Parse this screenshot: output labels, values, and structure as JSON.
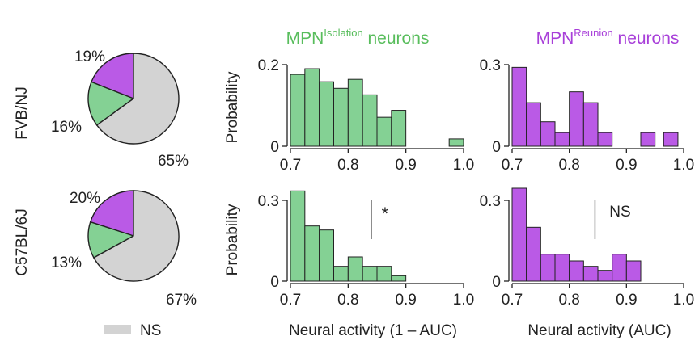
{
  "colors": {
    "isolation": "#84d194",
    "reunion": "#ba5ae6",
    "ns": "#d3d3d3",
    "isolation_title": "#58bd5c",
    "reunion_title": "#a83fd9",
    "axis": "#222222"
  },
  "titles": {
    "isolation_prefix": "MPN",
    "isolation_sup": "Isolation",
    "isolation_suffix": " neurons",
    "reunion_prefix": "MPN",
    "reunion_sup": "Reunion",
    "reunion_suffix": " neurons"
  },
  "legend": {
    "ns_label": "NS"
  },
  "chart_data": [
    {
      "type": "pie",
      "row_label": "FVB/NJ",
      "slices": [
        {
          "label": "19%",
          "value": 19,
          "color_key": "reunion"
        },
        {
          "label": "16%",
          "value": 16,
          "color_key": "isolation"
        },
        {
          "label": "65%",
          "value": 65,
          "color_key": "ns"
        }
      ]
    },
    {
      "type": "pie",
      "row_label": "C57BL/6J",
      "slices": [
        {
          "label": "20%",
          "value": 20,
          "color_key": "reunion"
        },
        {
          "label": "13%",
          "value": 13,
          "color_key": "isolation"
        },
        {
          "label": "67%",
          "value": 67,
          "color_key": "ns"
        }
      ]
    },
    {
      "type": "bar",
      "group": "isolation",
      "ylabel": "Probability",
      "xlabel": "",
      "xlim": [
        0.7,
        1.0
      ],
      "ylim": [
        0,
        0.2
      ],
      "yticks": [
        "0",
        "0.2"
      ],
      "xticks": [
        "0.7",
        "0.8",
        "0.9",
        "1.0"
      ],
      "bin_width": 0.025,
      "bin_starts": [
        0.7,
        0.725,
        0.75,
        0.775,
        0.8,
        0.825,
        0.85,
        0.875,
        0.9,
        0.925,
        0.95,
        0.975
      ],
      "values": [
        0.176,
        0.19,
        0.158,
        0.142,
        0.164,
        0.126,
        0.071,
        0.088,
        0,
        0,
        0,
        0.018
      ]
    },
    {
      "type": "bar",
      "group": "reunion",
      "ylabel": "",
      "xlabel": "",
      "xlim": [
        0.7,
        1.0
      ],
      "ylim": [
        0,
        0.3
      ],
      "yticks": [
        "0",
        "0.3"
      ],
      "xticks": [
        "0.7",
        "0.8",
        "0.9",
        "1.0"
      ],
      "bin_width": 0.025,
      "bin_starts": [
        0.7,
        0.725,
        0.75,
        0.775,
        0.8,
        0.825,
        0.85,
        0.875,
        0.9,
        0.925,
        0.95,
        0.975
      ],
      "values": [
        0.29,
        0.16,
        0.09,
        0.05,
        0.2,
        0.16,
        0.05,
        0,
        0,
        0.05,
        0,
        0
      ],
      "extra_bars": [
        {
          "start": 0.965,
          "value": 0.05
        }
      ]
    },
    {
      "type": "bar",
      "group": "isolation",
      "ylabel": "Probability",
      "xlabel": "Neural activity (1 – AUC)",
      "xlim": [
        0.7,
        1.0
      ],
      "ylim": [
        0,
        0.3
      ],
      "yticks": [
        "0",
        "0.3"
      ],
      "xticks": [
        "0.7",
        "0.8",
        "0.9",
        "1.0"
      ],
      "bin_width": 0.025,
      "bin_starts": [
        0.7,
        0.725,
        0.75,
        0.775,
        0.8,
        0.825,
        0.85,
        0.875,
        0.9,
        0.925,
        0.95,
        0.975
      ],
      "values": [
        0.335,
        0.205,
        0.19,
        0.055,
        0.09,
        0.055,
        0.055,
        0.02,
        0,
        0,
        0,
        0
      ],
      "marker_x": 0.84,
      "annotation": "*"
    },
    {
      "type": "bar",
      "group": "reunion",
      "ylabel": "",
      "xlabel": "Neural activity (AUC)",
      "xlim": [
        0.7,
        1.0
      ],
      "ylim": [
        0,
        0.3
      ],
      "yticks": [
        "0",
        "0.3"
      ],
      "xticks": [
        "0.7",
        "0.8",
        "0.9",
        "1.0"
      ],
      "bin_width": 0.025,
      "bin_starts": [
        0.7,
        0.725,
        0.75,
        0.775,
        0.8,
        0.825,
        0.85,
        0.875,
        0.9,
        0.925,
        0.95,
        0.975
      ],
      "values": [
        0.345,
        0.2,
        0.1,
        0.1,
        0.075,
        0.055,
        0.04,
        0.1,
        0.075,
        0,
        0,
        0
      ],
      "marker_x": 0.845,
      "annotation": "NS"
    }
  ]
}
